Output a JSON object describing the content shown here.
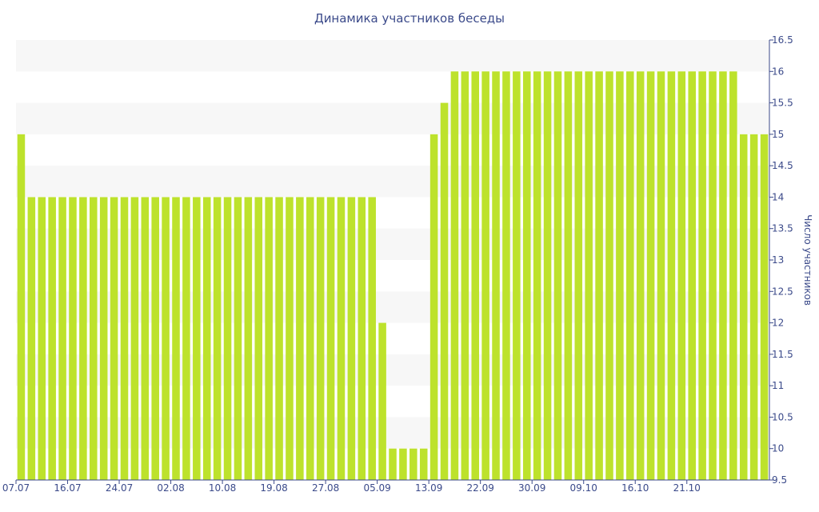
{
  "chart_data": {
    "type": "bar",
    "title": "Динамика участников беседы",
    "ylabel": "Число участников",
    "xlabel": "",
    "ylim": [
      9.5,
      16.5
    ],
    "y_ticks": [
      "9.5",
      "10",
      "10.5",
      "11",
      "11.5",
      "12",
      "12.5",
      "13",
      "13.5",
      "14",
      "14.5",
      "15",
      "15.5",
      "16",
      "16.5"
    ],
    "x_tick_labels": [
      "07.07",
      "16.07",
      "24.07",
      "02.08",
      "10.08",
      "19.08",
      "27.08",
      "05.09",
      "13.09",
      "22.09",
      "30.09",
      "09.10",
      "16.10",
      "21.10"
    ],
    "x_tick_bar_index": [
      0,
      5,
      10,
      15,
      20,
      25,
      30,
      35,
      40,
      45,
      50,
      55,
      60,
      65
    ],
    "bar_color": "#bde22c",
    "band_color": "#f7f7f7",
    "axis_color": "#3b4a8a",
    "values": [
      15,
      14,
      14,
      14,
      14,
      14,
      14,
      14,
      14,
      14,
      14,
      14,
      14,
      14,
      14,
      14,
      14,
      14,
      14,
      14,
      14,
      14,
      14,
      14,
      14,
      14,
      14,
      14,
      14,
      14,
      14,
      14,
      14,
      14,
      14,
      12,
      10,
      10,
      10,
      10,
      15,
      15.5,
      16,
      16,
      16,
      16,
      16,
      16,
      16,
      16,
      16,
      16,
      16,
      16,
      16,
      16,
      16,
      16,
      16,
      16,
      16,
      16,
      16,
      16,
      16,
      16,
      16,
      16,
      16,
      16,
      15,
      15,
      15
    ]
  }
}
